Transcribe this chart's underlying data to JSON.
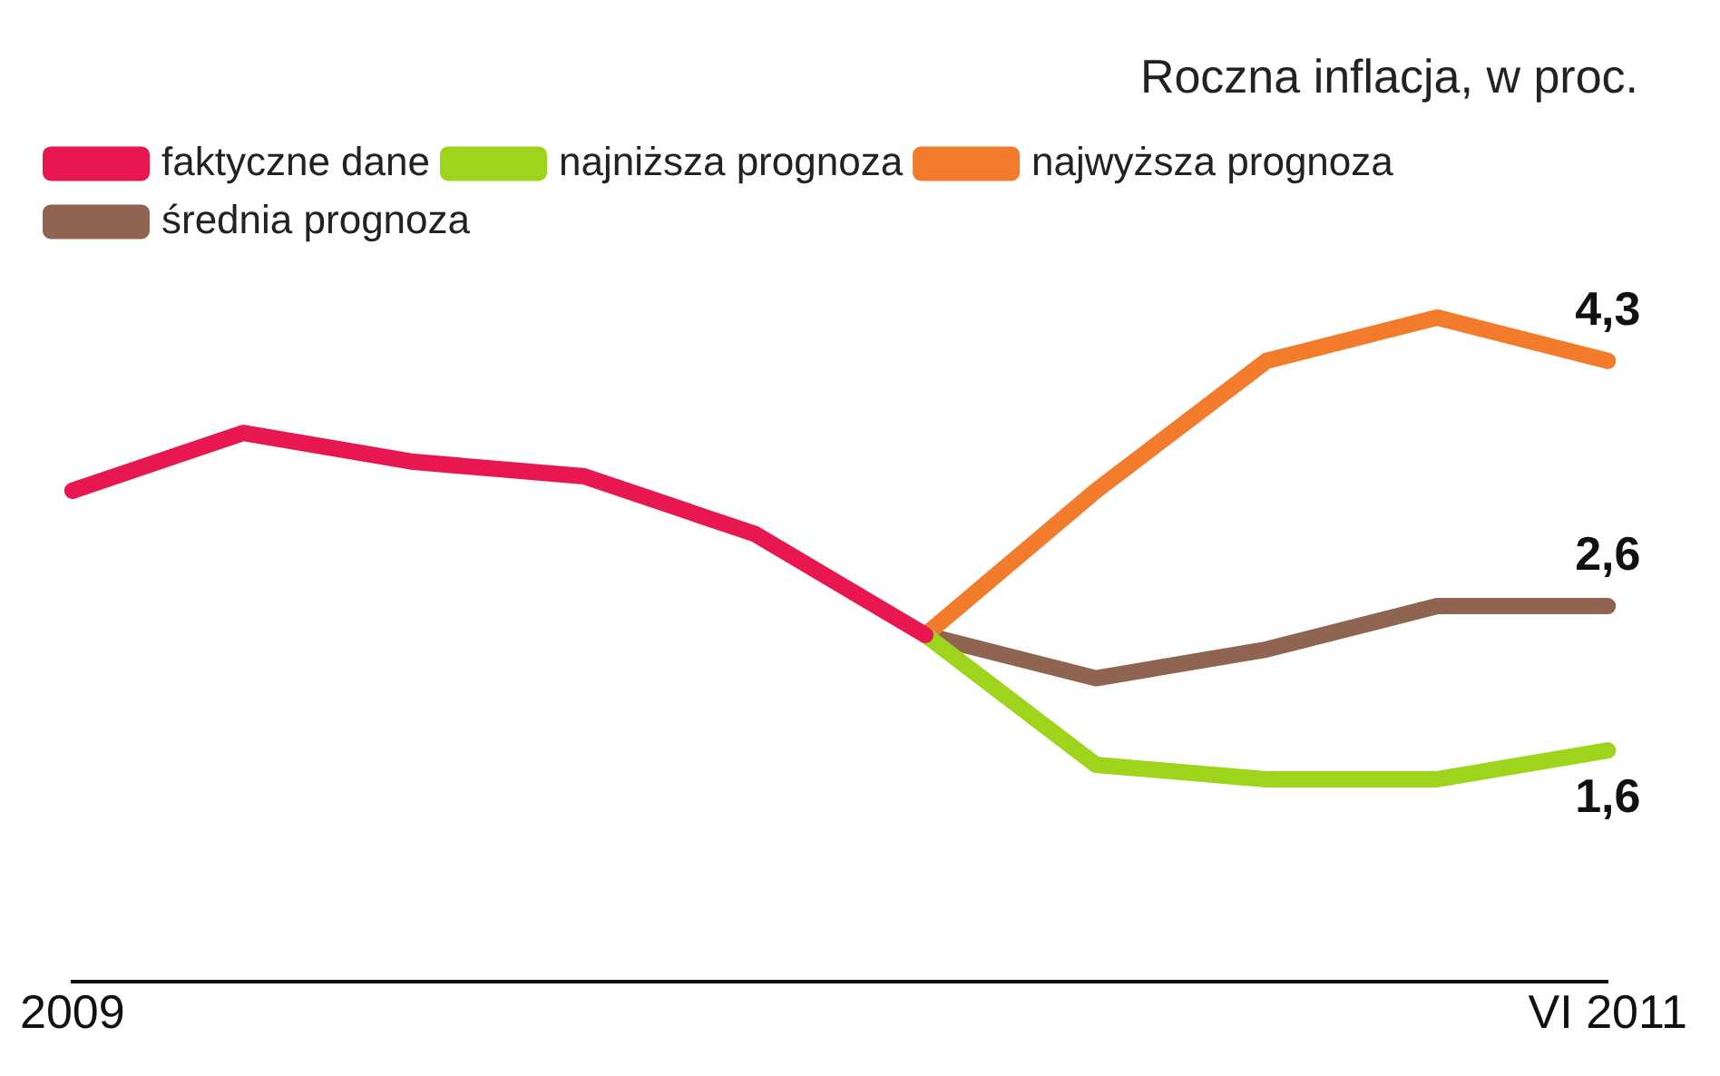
{
  "chart_data": {
    "type": "line",
    "title": "Roczna inflacja, w proc.",
    "legend": "top left",
    "grid": false,
    "categories": [
      "2009",
      null,
      null,
      null,
      null,
      null,
      null,
      null,
      null,
      "VI 2011"
    ],
    "series": [
      {
        "name": "faktyczne dane",
        "color": "#e8174f",
        "values": [
          3.4,
          3.8,
          3.6,
          3.5,
          3.1,
          2.4,
          null,
          null,
          null,
          null
        ]
      },
      {
        "name": "najniższa prognoza",
        "color": "#9ed41c",
        "values": [
          null,
          null,
          null,
          null,
          null,
          2.4,
          1.5,
          1.4,
          1.4,
          1.6
        ],
        "value_labels": [
          null,
          null,
          null,
          null,
          null,
          null,
          null,
          null,
          null,
          "1,6"
        ]
      },
      {
        "name": "najwyższa prognoza",
        "color": "#f27c2c",
        "values": [
          null,
          null,
          null,
          null,
          null,
          2.4,
          3.4,
          4.3,
          4.6,
          4.3
        ],
        "value_labels": [
          null,
          null,
          null,
          null,
          null,
          null,
          null,
          null,
          null,
          "4,3"
        ]
      },
      {
        "name": "średnia prognoza",
        "color": "#8f6450",
        "values": [
          null,
          null,
          null,
          null,
          null,
          2.4,
          2.1,
          2.3,
          2.6,
          2.6
        ],
        "value_labels": [
          null,
          null,
          null,
          null,
          null,
          null,
          null,
          null,
          null,
          "2,6"
        ]
      }
    ]
  }
}
